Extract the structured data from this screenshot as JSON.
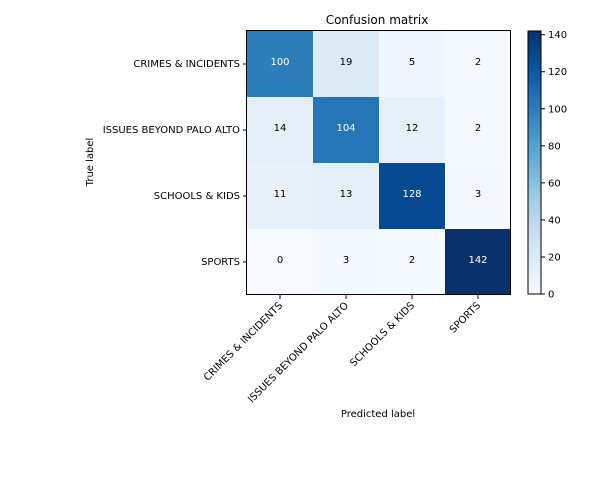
{
  "chart_data": {
    "type": "heatmap",
    "title": "Confusion matrix",
    "xlabel": "Predicted label",
    "ylabel": "True label",
    "x_categories": [
      "CRIMES & INCIDENTS",
      "ISSUES BEYOND PALO ALTO",
      "SCHOOLS & KIDS",
      "SPORTS"
    ],
    "y_categories": [
      "CRIMES & INCIDENTS",
      "ISSUES BEYOND PALO ALTO",
      "SCHOOLS & KIDS",
      "SPORTS"
    ],
    "values": [
      [
        100,
        19,
        5,
        2
      ],
      [
        14,
        104,
        12,
        2
      ],
      [
        11,
        13,
        128,
        3
      ],
      [
        0,
        3,
        2,
        142
      ]
    ],
    "colormap": "Blues",
    "color_range": [
      0,
      142
    ],
    "colorbar_ticks": [
      "0",
      "20",
      "40",
      "60",
      "80",
      "100",
      "120",
      "140"
    ],
    "colorbar_tick_values": [
      0,
      20,
      40,
      60,
      80,
      100,
      120,
      140
    ]
  }
}
